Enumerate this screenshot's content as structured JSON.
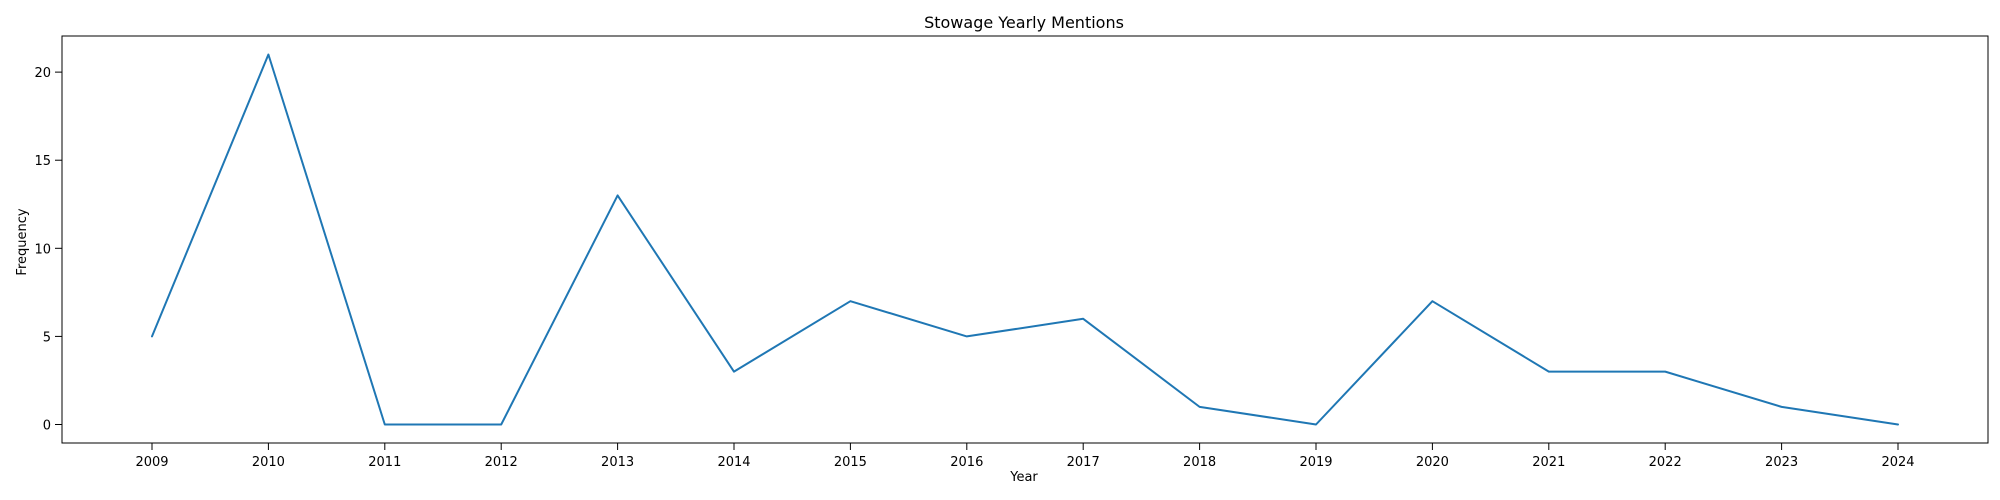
{
  "chart_data": {
    "type": "line",
    "title": "Stowage Yearly Mentions",
    "xlabel": "Year",
    "ylabel": "Frequency",
    "x": [
      "2009",
      "2010",
      "2011",
      "2012",
      "2013",
      "2014",
      "2015",
      "2016",
      "2017",
      "2018",
      "2019",
      "2020",
      "2021",
      "2022",
      "2023",
      "2024"
    ],
    "series": [
      {
        "values": [
          5,
          21,
          0,
          0,
          13,
          3,
          7,
          5,
          6,
          1,
          0,
          7,
          3,
          3,
          1,
          0
        ],
        "color": "#1f77b4"
      }
    ],
    "yticks": [
      0,
      5,
      10,
      15,
      20
    ],
    "ylim": [
      -1.05,
      22.05
    ],
    "grid": false,
    "legend": "none"
  }
}
